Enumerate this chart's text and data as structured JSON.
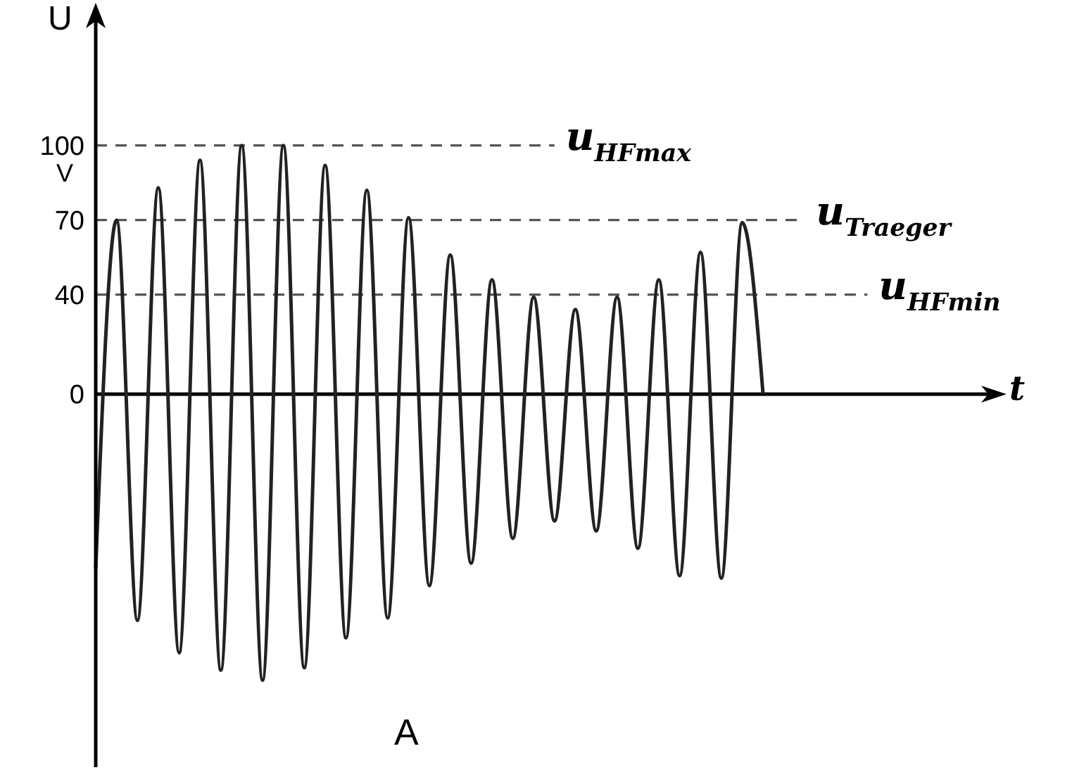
{
  "chart_data": {
    "type": "line",
    "ylabel": "U",
    "xlabel": "t",
    "annotations": [
      "V",
      "A"
    ],
    "categories": [
      null,
      null,
      null,
      null,
      null,
      null,
      null,
      null,
      null,
      null,
      null,
      null,
      null,
      null,
      null,
      null,
      null,
      null,
      null,
      null,
      null,
      null,
      null,
      null,
      null,
      null,
      null,
      null,
      null,
      null,
      null,
      null,
      null,
      null,
      null,
      null,
      null,
      null,
      null,
      null,
      null,
      null,
      null,
      null
    ],
    "series": [
      {
        "color": "#222222",
        "values": [
          -70,
          70,
          -91,
          83,
          -104,
          94,
          -111,
          100,
          -115,
          100,
          -110,
          92,
          -98,
          82,
          -90,
          71,
          -77,
          56,
          -68,
          46,
          -58,
          39,
          -51,
          34,
          -55,
          39,
          -62,
          46,
          -73,
          57,
          -74,
          69,
          0,
          null,
          null,
          null,
          null,
          null,
          null,
          null,
          null,
          null,
          null,
          null
        ]
      }
    ],
    "ylim": [
      -150,
      150
    ],
    "yticks": [
      0,
      40,
      70,
      100
    ],
    "tick_labels": "y",
    "grid": false,
    "marker": "none",
    "line_style": "solid",
    "ref_lines": [
      {
        "axis": "y",
        "value": 0,
        "color": "#000000",
        "line_style": "solid"
      },
      {
        "axis": "y",
        "value": 100,
        "label": "u$_{HFmax}$",
        "color": "#555555",
        "line_style": "dashed"
      },
      {
        "axis": "y",
        "value": 70,
        "label": "u$_{Traeger}$",
        "color": "#555555",
        "line_style": "dashed"
      },
      {
        "axis": "y",
        "value": 40,
        "label": "u$_{HFmin}$",
        "color": "#555555",
        "line_style": "dashed"
      }
    ]
  }
}
